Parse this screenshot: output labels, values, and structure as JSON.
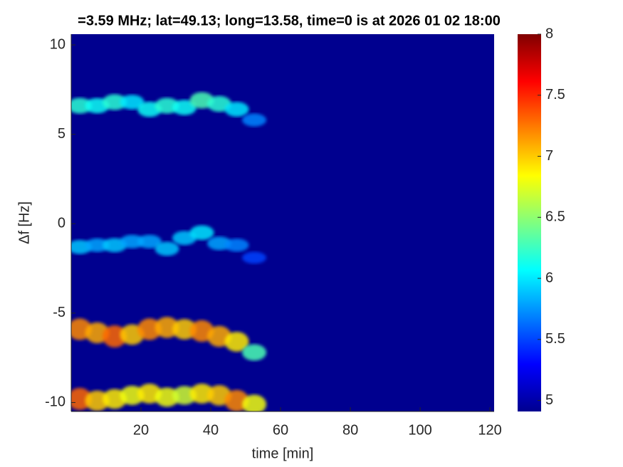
{
  "chart_data": {
    "type": "spectrogram",
    "title": "=3.59 MHz;  lat=49.13; long=13.58, time=0 is at 2026 01 02 18:00",
    "x_label": "time [min]",
    "y_label": "Δf [Hz]",
    "x": [
      0,
      5,
      10,
      15,
      20,
      25,
      30,
      35,
      40,
      45,
      50
    ],
    "series": [
      {
        "values": [
          6.6,
          6.6,
          6.8,
          6.8,
          6.4,
          6.6,
          6.5,
          6.9,
          6.7,
          6.4,
          5.8
        ],
        "levels": [
          6.2,
          6.1,
          6.2,
          6.0,
          6.1,
          6.2,
          6.1,
          6.3,
          6.2,
          6.0,
          5.7
        ]
      },
      {
        "values": [
          -1.3,
          -1.2,
          -1.2,
          -1.0,
          -1.0,
          -1.4,
          -0.8,
          -0.5,
          -1.1,
          -1.2,
          -1.9
        ],
        "levels": [
          5.9,
          5.8,
          5.9,
          5.8,
          5.8,
          5.9,
          5.9,
          6.0,
          5.8,
          5.7,
          5.5
        ]
      },
      {
        "values": [
          -5.9,
          -6.1,
          -6.3,
          -6.2,
          -5.9,
          -5.8,
          -5.9,
          -6.0,
          -6.3,
          -6.6,
          -7.2
        ],
        "levels": [
          7.2,
          7.1,
          7.3,
          7.0,
          7.2,
          7.1,
          7.0,
          7.2,
          7.1,
          6.9,
          6.3
        ]
      },
      {
        "values": [
          -9.8,
          -9.9,
          -9.8,
          -9.6,
          -9.5,
          -9.7,
          -9.6,
          -9.5,
          -9.6,
          -9.9,
          -10.1
        ],
        "levels": [
          7.3,
          7.0,
          6.9,
          6.8,
          6.9,
          6.8,
          6.7,
          6.9,
          7.0,
          7.2,
          6.8
        ]
      }
    ],
    "xlim": [
      0,
      121.2
    ],
    "xticks": [
      20,
      40,
      60,
      80,
      100,
      120
    ],
    "ylim": [
      -10.5,
      10.6
    ],
    "yticks": [
      -10,
      -5,
      0,
      5,
      10
    ],
    "clim": [
      4.91,
      8
    ],
    "cticks": [
      5,
      5.5,
      6,
      6.5,
      7,
      7.5,
      8
    ],
    "colormap": "jet"
  }
}
